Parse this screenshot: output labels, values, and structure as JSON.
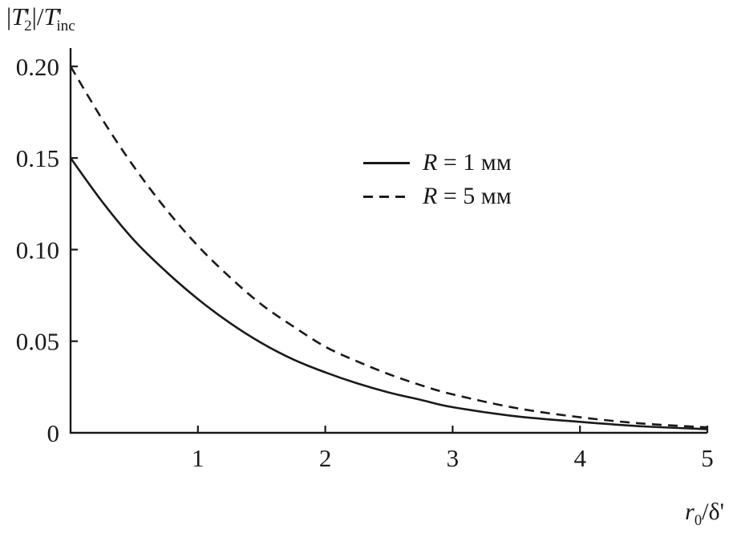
{
  "figure": {
    "background": "#ffffff",
    "line_color": "#1a1a1a"
  },
  "ylabel": {
    "bar1": "|",
    "sym1": "T",
    "prime1": "'",
    "sub1": "2",
    "mid": "|/",
    "sym2": "T",
    "prime2": "'",
    "sub2": "inc"
  },
  "xlabel": {
    "sym": "r",
    "sub": "0",
    "slash": "/",
    "delta": "δ",
    "prime": "'"
  },
  "legend": [
    {
      "sym": "R",
      "rest": " = 1 мм"
    },
    {
      "sym": "R",
      "rest": " = 5 мм"
    }
  ],
  "chart_data": {
    "type": "line",
    "title": "",
    "xlabel": "r0/δ'",
    "ylabel": "|T'2|/T'inc",
    "xlim": [
      0,
      5
    ],
    "ylim": [
      0,
      0.21
    ],
    "xticks": [
      1,
      2,
      3,
      4,
      5
    ],
    "xtick_labels": [
      "1",
      "2",
      "3",
      "4",
      "5"
    ],
    "yticks": [
      0,
      0.05,
      0.1,
      0.15,
      0.2
    ],
    "ytick_labels": [
      "0",
      "0.05",
      "0.10",
      "0.15",
      "0.20"
    ],
    "grid": false,
    "legend_position": "inside upper right-of-center",
    "series": [
      {
        "name": "R = 1 мм",
        "line_style": "solid",
        "x": [
          0,
          0.25,
          0.5,
          0.75,
          1,
          1.25,
          1.5,
          1.75,
          2,
          2.25,
          2.5,
          2.75,
          3,
          3.5,
          4,
          4.5,
          5
        ],
        "y": [
          0.15,
          0.126,
          0.105,
          0.088,
          0.073,
          0.06,
          0.049,
          0.04,
          0.033,
          0.027,
          0.022,
          0.018,
          0.014,
          0.009,
          0.006,
          0.0035,
          0.002
        ]
      },
      {
        "name": "R = 5 мм",
        "line_style": "dashed",
        "x": [
          0,
          0.25,
          0.5,
          0.75,
          1,
          1.25,
          1.5,
          1.75,
          2,
          2.25,
          2.5,
          2.75,
          3,
          3.5,
          4,
          4.5,
          5
        ],
        "y": [
          0.2,
          0.171,
          0.145,
          0.122,
          0.102,
          0.085,
          0.07,
          0.058,
          0.047,
          0.039,
          0.032,
          0.026,
          0.021,
          0.0135,
          0.0085,
          0.005,
          0.003
        ]
      }
    ]
  }
}
